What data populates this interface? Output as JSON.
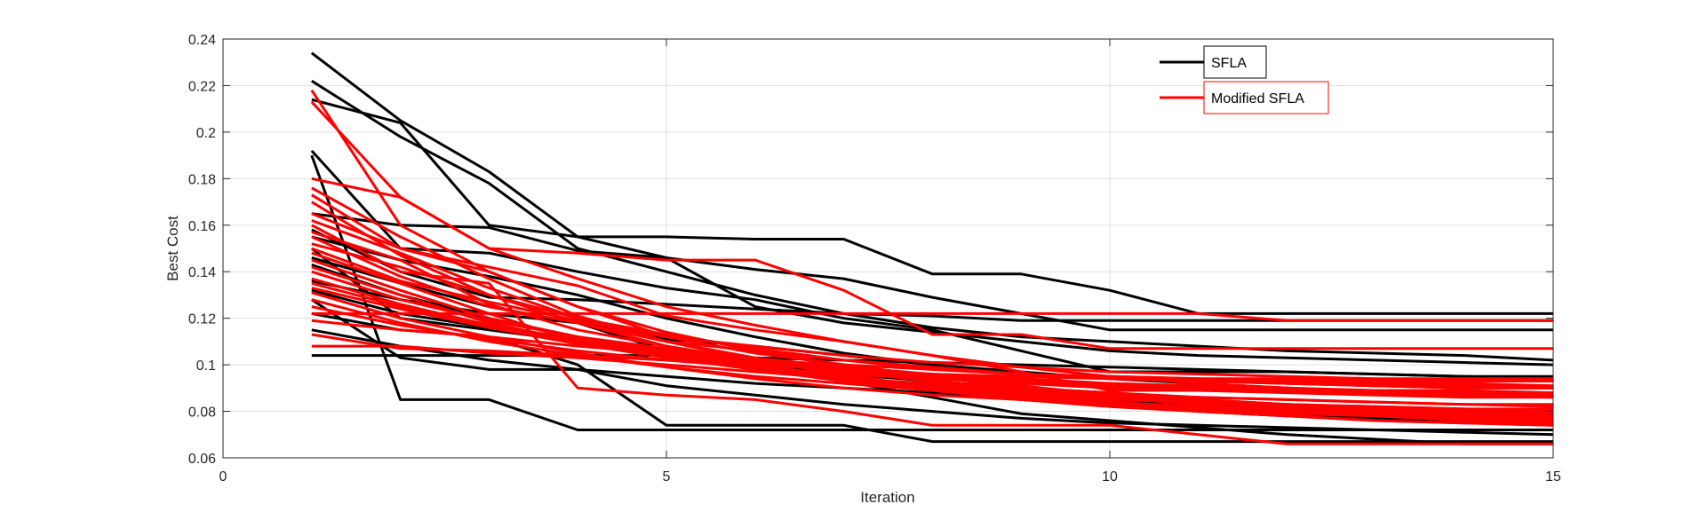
{
  "chart_data": {
    "type": "line",
    "title": "",
    "xlabel": "Iteration",
    "ylabel": "Best Cost",
    "xlim": [
      0,
      15
    ],
    "ylim": [
      0.06,
      0.24
    ],
    "x_ticks": [
      0,
      5,
      10,
      15
    ],
    "x_tick_labels": [
      "0",
      "5",
      "10",
      "15"
    ],
    "y_ticks": [
      0.06,
      0.08,
      0.1,
      0.12,
      0.14,
      0.16,
      0.18,
      0.2,
      0.22,
      0.24
    ],
    "y_tick_labels": [
      "0.06",
      "0.08",
      "0.1",
      "0.12",
      "0.14",
      "0.16",
      "0.18",
      "0.2",
      "0.22",
      "0.24"
    ],
    "grid": true,
    "legend_placement": "top-right",
    "x": [
      1,
      2,
      3,
      4,
      5,
      6,
      7,
      8,
      9,
      10,
      11,
      12,
      13,
      14,
      15
    ],
    "groups": [
      {
        "name": "SFLA",
        "color": "#000000",
        "runs": [
          [
            0.234,
            0.205,
            0.183,
            0.155,
            0.146,
            0.125,
            0.118,
            0.114,
            0.11,
            0.106,
            0.104,
            0.103,
            0.102,
            0.101,
            0.1
          ],
          [
            0.222,
            0.198,
            0.178,
            0.15,
            0.14,
            0.13,
            0.122,
            0.116,
            0.112,
            0.11,
            0.108,
            0.106,
            0.105,
            0.104,
            0.102
          ],
          [
            0.214,
            0.204,
            0.16,
            0.155,
            0.155,
            0.154,
            0.154,
            0.139,
            0.139,
            0.132,
            0.122,
            0.122,
            0.122,
            0.122,
            0.122
          ],
          [
            0.192,
            0.15,
            0.148,
            0.14,
            0.133,
            0.128,
            0.12,
            0.115,
            0.106,
            0.097,
            0.097,
            0.097,
            0.096,
            0.095,
            0.095
          ],
          [
            0.19,
            0.085,
            0.085,
            0.072,
            0.072,
            0.072,
            0.072,
            0.072,
            0.072,
            0.072,
            0.072,
            0.072,
            0.072,
            0.072,
            0.072
          ],
          [
            0.165,
            0.16,
            0.159,
            0.149,
            0.146,
            0.141,
            0.137,
            0.129,
            0.122,
            0.115,
            0.115,
            0.115,
            0.115,
            0.115,
            0.115
          ],
          [
            0.158,
            0.14,
            0.129,
            0.128,
            0.126,
            0.124,
            0.122,
            0.121,
            0.119,
            0.119,
            0.119,
            0.119,
            0.119,
            0.119,
            0.119
          ],
          [
            0.155,
            0.145,
            0.138,
            0.13,
            0.12,
            0.112,
            0.105,
            0.1,
            0.097,
            0.094,
            0.092,
            0.09,
            0.088,
            0.087,
            0.086
          ],
          [
            0.15,
            0.12,
            0.115,
            0.11,
            0.105,
            0.1,
            0.096,
            0.093,
            0.09,
            0.088,
            0.085,
            0.083,
            0.081,
            0.08,
            0.079
          ],
          [
            0.146,
            0.135,
            0.125,
            0.118,
            0.106,
            0.1,
            0.094,
            0.089,
            0.085,
            0.083,
            0.08,
            0.078,
            0.077,
            0.076,
            0.075
          ],
          [
            0.143,
            0.13,
            0.12,
            0.112,
            0.105,
            0.098,
            0.093,
            0.086,
            0.079,
            0.076,
            0.073,
            0.07,
            0.068,
            0.066,
            0.066
          ],
          [
            0.136,
            0.128,
            0.122,
            0.118,
            0.111,
            0.108,
            0.104,
            0.1,
            0.096,
            0.094,
            0.093,
            0.092,
            0.091,
            0.09,
            0.09
          ],
          [
            0.132,
            0.122,
            0.116,
            0.109,
            0.104,
            0.101,
            0.098,
            0.095,
            0.093,
            0.092,
            0.09,
            0.089,
            0.088,
            0.088,
            0.087
          ],
          [
            0.128,
            0.103,
            0.098,
            0.098,
            0.091,
            0.087,
            0.083,
            0.08,
            0.077,
            0.075,
            0.074,
            0.073,
            0.072,
            0.071,
            0.07
          ],
          [
            0.122,
            0.115,
            0.112,
            0.1,
            0.074,
            0.074,
            0.074,
            0.067,
            0.067,
            0.067,
            0.067,
            0.067,
            0.067,
            0.067,
            0.067
          ],
          [
            0.115,
            0.108,
            0.102,
            0.098,
            0.095,
            0.092,
            0.09,
            0.088,
            0.086,
            0.084,
            0.083,
            0.082,
            0.081,
            0.08,
            0.08
          ],
          [
            0.104,
            0.104,
            0.104,
            0.104,
            0.104,
            0.103,
            0.102,
            0.101,
            0.1,
            0.099,
            0.098,
            0.097,
            0.096,
            0.095,
            0.094
          ]
        ]
      },
      {
        "name": "Modified SFLA",
        "color": "#ff0000",
        "runs": [
          [
            0.218,
            0.16,
            0.14,
            0.125,
            0.112,
            0.105,
            0.1,
            0.095,
            0.09,
            0.086,
            0.083,
            0.08,
            0.078,
            0.076,
            0.075
          ],
          [
            0.213,
            0.172,
            0.15,
            0.137,
            0.125,
            0.117,
            0.11,
            0.104,
            0.099,
            0.095,
            0.092,
            0.09,
            0.088,
            0.087,
            0.086
          ],
          [
            0.18,
            0.172,
            0.15,
            0.148,
            0.145,
            0.145,
            0.132,
            0.113,
            0.113,
            0.107,
            0.107,
            0.107,
            0.107,
            0.107,
            0.107
          ],
          [
            0.176,
            0.155,
            0.137,
            0.121,
            0.11,
            0.102,
            0.096,
            0.09,
            0.086,
            0.083,
            0.08,
            0.078,
            0.076,
            0.075,
            0.074
          ],
          [
            0.173,
            0.15,
            0.142,
            0.134,
            0.121,
            0.115,
            0.11,
            0.104,
            0.097,
            0.089,
            0.089,
            0.089,
            0.088,
            0.088,
            0.088
          ],
          [
            0.17,
            0.147,
            0.13,
            0.118,
            0.108,
            0.102,
            0.097,
            0.093,
            0.09,
            0.087,
            0.085,
            0.083,
            0.082,
            0.081,
            0.08
          ],
          [
            0.165,
            0.15,
            0.14,
            0.125,
            0.114,
            0.106,
            0.1,
            0.095,
            0.091,
            0.087,
            0.084,
            0.082,
            0.08,
            0.078,
            0.077
          ],
          [
            0.162,
            0.148,
            0.133,
            0.12,
            0.11,
            0.103,
            0.098,
            0.093,
            0.089,
            0.086,
            0.083,
            0.081,
            0.08,
            0.079,
            0.078
          ],
          [
            0.16,
            0.14,
            0.135,
            0.09,
            0.087,
            0.085,
            0.08,
            0.074,
            0.074,
            0.074,
            0.07,
            0.066,
            0.066,
            0.066,
            0.066
          ],
          [
            0.157,
            0.145,
            0.126,
            0.115,
            0.108,
            0.1,
            0.095,
            0.089,
            0.085,
            0.082,
            0.08,
            0.078,
            0.076,
            0.075,
            0.074
          ],
          [
            0.155,
            0.138,
            0.125,
            0.118,
            0.11,
            0.106,
            0.102,
            0.099,
            0.096,
            0.094,
            0.093,
            0.092,
            0.091,
            0.09,
            0.09
          ],
          [
            0.152,
            0.142,
            0.13,
            0.12,
            0.113,
            0.107,
            0.102,
            0.098,
            0.096,
            0.095,
            0.094,
            0.094,
            0.093,
            0.093,
            0.093
          ],
          [
            0.15,
            0.136,
            0.127,
            0.119,
            0.112,
            0.108,
            0.104,
            0.101,
            0.099,
            0.097,
            0.096,
            0.095,
            0.094,
            0.094,
            0.094
          ],
          [
            0.148,
            0.135,
            0.122,
            0.11,
            0.103,
            0.098,
            0.093,
            0.089,
            0.086,
            0.083,
            0.081,
            0.079,
            0.078,
            0.077,
            0.076
          ],
          [
            0.145,
            0.132,
            0.12,
            0.112,
            0.105,
            0.1,
            0.095,
            0.091,
            0.088,
            0.086,
            0.084,
            0.082,
            0.081,
            0.08,
            0.079
          ],
          [
            0.142,
            0.13,
            0.118,
            0.11,
            0.104,
            0.099,
            0.094,
            0.09,
            0.087,
            0.084,
            0.082,
            0.08,
            0.079,
            0.078,
            0.077
          ],
          [
            0.14,
            0.128,
            0.119,
            0.112,
            0.107,
            0.103,
            0.099,
            0.096,
            0.094,
            0.092,
            0.091,
            0.09,
            0.089,
            0.089,
            0.088
          ],
          [
            0.137,
            0.126,
            0.117,
            0.111,
            0.106,
            0.102,
            0.098,
            0.095,
            0.093,
            0.091,
            0.09,
            0.089,
            0.088,
            0.087,
            0.087
          ],
          [
            0.135,
            0.125,
            0.116,
            0.109,
            0.103,
            0.098,
            0.094,
            0.091,
            0.089,
            0.087,
            0.086,
            0.085,
            0.084,
            0.083,
            0.083
          ],
          [
            0.133,
            0.124,
            0.116,
            0.11,
            0.105,
            0.101,
            0.097,
            0.094,
            0.092,
            0.09,
            0.089,
            0.088,
            0.087,
            0.086,
            0.086
          ],
          [
            0.131,
            0.12,
            0.112,
            0.105,
            0.099,
            0.094,
            0.09,
            0.087,
            0.085,
            0.083,
            0.082,
            0.081,
            0.08,
            0.079,
            0.079
          ],
          [
            0.128,
            0.118,
            0.11,
            0.104,
            0.099,
            0.095,
            0.092,
            0.089,
            0.087,
            0.085,
            0.084,
            0.083,
            0.082,
            0.081,
            0.081
          ],
          [
            0.125,
            0.117,
            0.111,
            0.106,
            0.102,
            0.099,
            0.096,
            0.094,
            0.092,
            0.091,
            0.09,
            0.089,
            0.088,
            0.088,
            0.087
          ],
          [
            0.122,
            0.122,
            0.122,
            0.122,
            0.122,
            0.122,
            0.122,
            0.122,
            0.122,
            0.122,
            0.122,
            0.119,
            0.119,
            0.119,
            0.119
          ],
          [
            0.119,
            0.115,
            0.112,
            0.108,
            0.105,
            0.102,
            0.1,
            0.098,
            0.096,
            0.095,
            0.094,
            0.093,
            0.092,
            0.092,
            0.091
          ],
          [
            0.113,
            0.107,
            0.106,
            0.104,
            0.102,
            0.1,
            0.098,
            0.096,
            0.095,
            0.094,
            0.093,
            0.092,
            0.091,
            0.091,
            0.09
          ],
          [
            0.108,
            0.108,
            0.105,
            0.103,
            0.1,
            0.097,
            0.094,
            0.092,
            0.09,
            0.088,
            0.086,
            0.085,
            0.084,
            0.083,
            0.082
          ]
        ]
      }
    ]
  }
}
